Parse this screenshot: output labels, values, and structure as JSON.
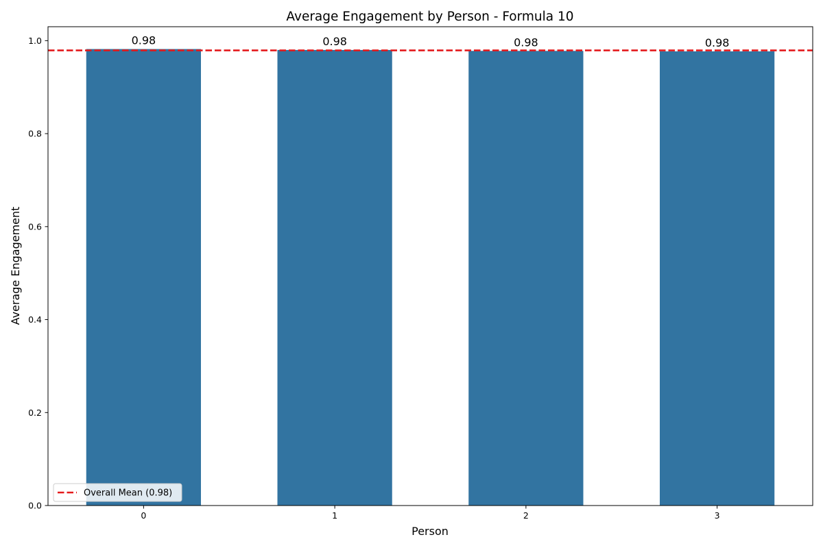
{
  "chart_data": {
    "type": "bar",
    "title": "Average Engagement by Person - Formula 10",
    "xlabel": "Person",
    "ylabel": "Average Engagement",
    "categories": [
      "0",
      "1",
      "2",
      "3"
    ],
    "values": [
      0.982,
      0.98,
      0.978,
      0.977
    ],
    "value_labels": [
      "0.98",
      "0.98",
      "0.98",
      "0.98"
    ],
    "ylim": [
      0,
      1.03
    ],
    "yticks": [
      0.0,
      0.2,
      0.4,
      0.6,
      0.8,
      1.0
    ],
    "ytick_labels": [
      "0.0",
      "0.2",
      "0.4",
      "0.6",
      "0.8",
      "1.0"
    ],
    "bar_color": "#3274a1",
    "grid": false,
    "mean_line": {
      "value": 0.979,
      "color": "#e41a1c",
      "style": "dashed"
    },
    "legend": {
      "position": "lower-left",
      "entries": [
        "Overall Mean (0.98)"
      ]
    }
  }
}
